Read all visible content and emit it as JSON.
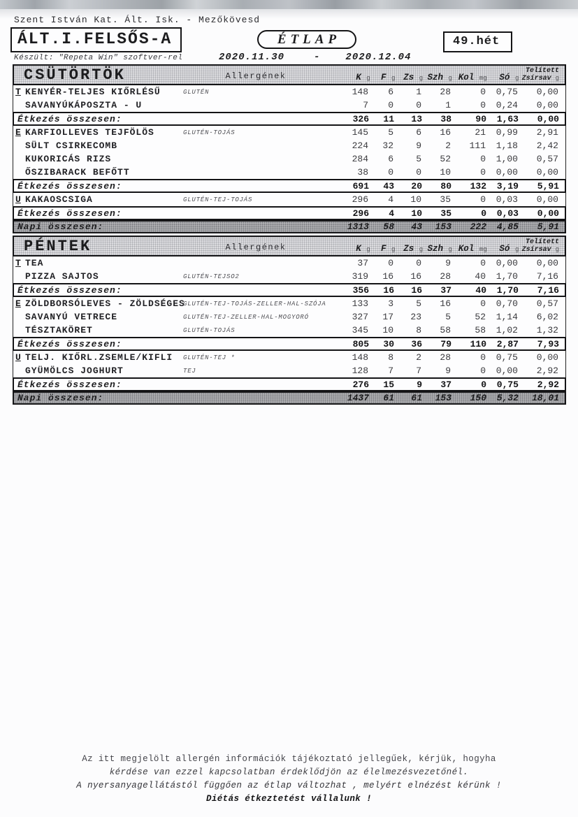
{
  "header": {
    "school": "Szent István Kat. Ált. Isk. - Mezőkövesd",
    "class_name": "ÁLT.I.FELSŐS-A",
    "doc_title": "ÉTLAP",
    "week": "49.hét",
    "made_with": "Készült: \"Repeta Win\" szoftver-rel",
    "date_from": "2020.11.30",
    "date_separator": "-",
    "date_to": "2020.12.04"
  },
  "table_labels": {
    "allergens_header": "Allergének",
    "columns": [
      {
        "label": "K",
        "unit": "g"
      },
      {
        "label": "F",
        "unit": "g"
      },
      {
        "label": "Zs",
        "unit": "g"
      },
      {
        "label": "Szh",
        "unit": "g"
      },
      {
        "label": "Kol",
        "unit": "mg"
      },
      {
        "label": "Só",
        "unit": "g"
      },
      {
        "label": "Telített Zsírsav",
        "unit": "g",
        "line1": "Telített",
        "line2": "Zsírsav"
      }
    ],
    "meal_total_label": "Étkezés összesen:",
    "day_total_label": "Napi összesen:"
  },
  "days": [
    {
      "name": "CSÜTÖRTÖK",
      "meals": [
        {
          "marker": "T",
          "items": [
            {
              "name": "KENYÉR-TELJES KIŐRLÉSŰ",
              "allergens": "GLUTÉN",
              "values": [
                "148",
                "6",
                "1",
                "28",
                "0",
                "0,75",
                "0,00"
              ]
            },
            {
              "name": "SAVANYÚKÁPOSZTA - U",
              "allergens": "",
              "values": [
                "7",
                "0",
                "0",
                "1",
                "0",
                "0,24",
                "0,00"
              ]
            }
          ],
          "total": [
            "326",
            "11",
            "13",
            "38",
            "90",
            "1,63",
            "0,00"
          ]
        },
        {
          "marker": "E",
          "items": [
            {
              "name": "KARFIOLLEVES TEJFÖLÖS",
              "allergens": "GLUTÉN-TOJÁS",
              "values": [
                "145",
                "5",
                "6",
                "16",
                "21",
                "0,99",
                "2,91"
              ]
            },
            {
              "name": "SÜLT CSIRKECOMB",
              "allergens": "",
              "values": [
                "224",
                "32",
                "9",
                "2",
                "111",
                "1,18",
                "2,42"
              ]
            },
            {
              "name": "KUKORICÁS RIZS",
              "allergens": "",
              "values": [
                "284",
                "6",
                "5",
                "52",
                "0",
                "1,00",
                "0,57"
              ]
            },
            {
              "name": "ŐSZIBARACK BEFŐTT",
              "allergens": "",
              "values": [
                "38",
                "0",
                "0",
                "10",
                "0",
                "0,00",
                "0,00"
              ]
            }
          ],
          "total": [
            "691",
            "43",
            "20",
            "80",
            "132",
            "3,19",
            "5,91"
          ]
        },
        {
          "marker": "U",
          "items": [
            {
              "name": "KAKAOSCSIGA",
              "allergens": "GLUTÉN-TEJ-TOJÁS",
              "values": [
                "296",
                "4",
                "10",
                "35",
                "0",
                "0,03",
                "0,00"
              ]
            }
          ],
          "total": [
            "296",
            "4",
            "10",
            "35",
            "0",
            "0,03",
            "0,00"
          ]
        }
      ],
      "day_total": [
        "1313",
        "58",
        "43",
        "153",
        "222",
        "4,85",
        "5,91"
      ]
    },
    {
      "name": "PÉNTEK",
      "meals": [
        {
          "marker": "T",
          "items": [
            {
              "name": "TEA",
              "allergens": "",
              "values": [
                "37",
                "0",
                "0",
                "9",
                "0",
                "0,00",
                "0,00"
              ]
            },
            {
              "name": "PIZZA SAJTOS",
              "allergens": "GLUTÉN-TEJSO2",
              "values": [
                "319",
                "16",
                "16",
                "28",
                "40",
                "1,70",
                "7,16"
              ]
            }
          ],
          "total": [
            "356",
            "16",
            "16",
            "37",
            "40",
            "1,70",
            "7,16"
          ]
        },
        {
          "marker": "E",
          "items": [
            {
              "name": "ZÖLDBORSÓLEVES - ZÖLDSÉGES",
              "allergens": "GLUTÉN-TEJ-TOJÁS-ZELLER-HAL-SZÓJA",
              "values": [
                "133",
                "3",
                "5",
                "16",
                "0",
                "0,70",
                "0,57"
              ]
            },
            {
              "name": "SAVANYÚ VETRECE",
              "allergens": "GLUTÉN-TEJ-ZELLER-HAL-MOGYORÓ",
              "values": [
                "327",
                "17",
                "23",
                "5",
                "52",
                "1,14",
                "6,02"
              ]
            },
            {
              "name": "TÉSZTAKÖRET",
              "allergens": "GLUTÉN-TOJÁS",
              "values": [
                "345",
                "10",
                "8",
                "58",
                "58",
                "1,02",
                "1,32"
              ]
            }
          ],
          "total": [
            "805",
            "30",
            "36",
            "79",
            "110",
            "2,87",
            "7,93"
          ]
        },
        {
          "marker": "U",
          "items": [
            {
              "name": "TELJ. KIŐRL.ZSEMLE/KIFLI",
              "allergens": "GLUTÉN-TEJ *",
              "values": [
                "148",
                "8",
                "2",
                "28",
                "0",
                "0,75",
                "0,00"
              ]
            },
            {
              "name": "GYÜMÖLCS JOGHURT",
              "allergens": "TEJ",
              "values": [
                "128",
                "7",
                "7",
                "9",
                "0",
                "0,00",
                "2,92"
              ]
            }
          ],
          "total": [
            "276",
            "15",
            "9",
            "37",
            "0",
            "0,75",
            "2,92"
          ]
        }
      ],
      "day_total": [
        "1437",
        "61",
        "61",
        "153",
        "150",
        "5,32",
        "18,01"
      ]
    }
  ],
  "footer": {
    "lines": [
      "Az itt megjelölt allergén információk tájékoztató jellegűek, kérjük, hogyha",
      "kérdése van ezzel kapcsolatban érdeklődjön az élelmezésvezetőnél.",
      "A nyersanyagellátástól függően az étlap változhat , melyért elnézést kérünk !",
      "Diétás étkeztetést vállalunk !"
    ]
  }
}
